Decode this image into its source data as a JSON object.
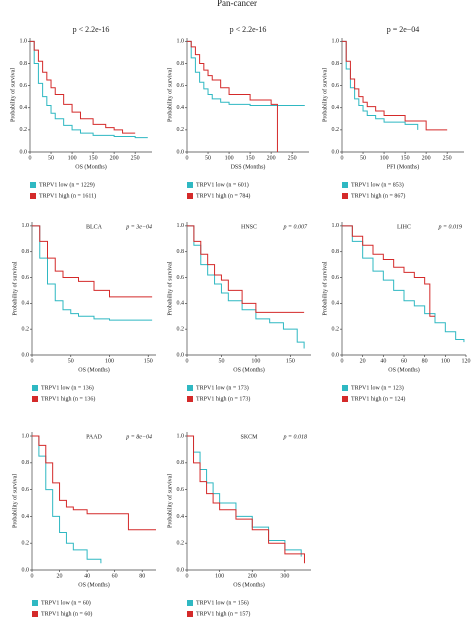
{
  "title": "Pan-cancer",
  "chart_data": [
    {
      "type": "line",
      "title": "p < 2.2e-16",
      "xlabel": "OS (Months)",
      "ylabel": "Probability of survival",
      "xlim": [
        0,
        290
      ],
      "xticks": [
        0,
        50,
        100,
        150,
        200,
        250
      ],
      "ylim": [
        0,
        1.03
      ],
      "yticks": [
        {
          "value": 0,
          "label": "0.0"
        },
        0.2,
        0.4,
        0.6,
        0.8,
        {
          "value": 1,
          "label": "1.0"
        }
      ],
      "series": [
        {
          "name": "TRPV1 low (n = 1229)",
          "color": "#2fb8c2",
          "x": [
            0,
            10,
            20,
            30,
            40,
            50,
            60,
            80,
            100,
            120,
            150,
            200,
            250,
            280
          ],
          "values": [
            1,
            0.8,
            0.62,
            0.5,
            0.42,
            0.35,
            0.3,
            0.24,
            0.2,
            0.17,
            0.15,
            0.14,
            0.13,
            0.13
          ]
        },
        {
          "name": "TRPV1 high (n = 1611)",
          "color": "#d42a2a",
          "x": [
            0,
            10,
            20,
            30,
            40,
            50,
            60,
            80,
            100,
            120,
            150,
            180,
            200,
            220,
            250
          ],
          "values": [
            1,
            0.92,
            0.82,
            0.72,
            0.65,
            0.58,
            0.52,
            0.43,
            0.36,
            0.3,
            0.25,
            0.22,
            0.2,
            0.17,
            0.17
          ]
        }
      ]
    },
    {
      "type": "line",
      "title": "p < 2.2e-16",
      "xlabel": "DSS (Months)",
      "ylabel": "Probability of survival",
      "xlim": [
        0,
        290
      ],
      "xticks": [
        0,
        50,
        100,
        150,
        200,
        250
      ],
      "ylim": [
        0,
        1.03
      ],
      "yticks": [
        {
          "value": 0,
          "label": "0.0"
        },
        0.2,
        0.4,
        0.6,
        0.8,
        {
          "value": 1,
          "label": "1.0"
        }
      ],
      "series": [
        {
          "name": "TRPV1 low (n = 601)",
          "color": "#2fb8c2",
          "x": [
            0,
            10,
            20,
            30,
            40,
            50,
            60,
            80,
            100,
            150,
            200,
            280
          ],
          "values": [
            1,
            0.85,
            0.72,
            0.63,
            0.57,
            0.52,
            0.48,
            0.45,
            0.43,
            0.42,
            0.42,
            0.42
          ]
        },
        {
          "name": "TRPV1 high (n = 784)",
          "color": "#d42a2a",
          "x": [
            0,
            10,
            20,
            30,
            40,
            50,
            60,
            80,
            100,
            150,
            200,
            215
          ],
          "values": [
            1,
            0.95,
            0.88,
            0.8,
            0.74,
            0.69,
            0.65,
            0.58,
            0.52,
            0.47,
            0.43,
            0
          ]
        }
      ]
    },
    {
      "type": "line",
      "title": "p = 2e−04",
      "xlabel": "PFI (Months)",
      "ylabel": "Probability of survival",
      "xlim": [
        0,
        290
      ],
      "xticks": [
        0,
        50,
        100,
        150,
        200,
        250
      ],
      "ylim": [
        0,
        1.03
      ],
      "yticks": [
        {
          "value": 0,
          "label": "0.0"
        },
        0.2,
        0.4,
        0.6,
        0.8,
        {
          "value": 1,
          "label": "1.0"
        }
      ],
      "series": [
        {
          "name": "TRPV1 low (n = 853)",
          "color": "#2fb8c2",
          "x": [
            0,
            10,
            20,
            30,
            40,
            50,
            60,
            80,
            100,
            150,
            180
          ],
          "values": [
            1,
            0.75,
            0.58,
            0.48,
            0.42,
            0.37,
            0.33,
            0.3,
            0.27,
            0.25,
            0.2
          ]
        },
        {
          "name": "TRPV1 high (n = 867)",
          "color": "#d42a2a",
          "x": [
            0,
            10,
            20,
            30,
            40,
            50,
            60,
            80,
            100,
            150,
            200,
            250
          ],
          "values": [
            1,
            0.82,
            0.66,
            0.57,
            0.5,
            0.45,
            0.41,
            0.37,
            0.33,
            0.28,
            0.2,
            0.2
          ]
        }
      ]
    },
    {
      "type": "line",
      "label": "BLCA",
      "title": "p = 3e−04",
      "xlabel": "OS (Months)",
      "ylabel": "Probability of survival",
      "xlim": [
        0,
        160
      ],
      "xticks": [
        0,
        50,
        100,
        150
      ],
      "ylim": [
        0,
        1.03
      ],
      "yticks": [
        {
          "value": 0,
          "label": "0.0"
        },
        0.2,
        0.4,
        0.6,
        0.8,
        {
          "value": 1,
          "label": "1.0"
        }
      ],
      "series": [
        {
          "name": "TRPV1 low (n = 136)",
          "color": "#2fb8c2",
          "x": [
            0,
            10,
            20,
            30,
            40,
            50,
            60,
            80,
            100,
            155
          ],
          "values": [
            1,
            0.75,
            0.55,
            0.42,
            0.35,
            0.32,
            0.3,
            0.28,
            0.27,
            0.27
          ]
        },
        {
          "name": "TRPV1 high (n = 136)",
          "color": "#d42a2a",
          "x": [
            0,
            10,
            20,
            30,
            40,
            60,
            80,
            100,
            155
          ],
          "values": [
            1,
            0.88,
            0.75,
            0.65,
            0.6,
            0.57,
            0.5,
            0.45,
            0.45
          ]
        }
      ]
    },
    {
      "type": "line",
      "label": "HNSC",
      "title": "p = 0.007",
      "xlabel": "OS (Months)",
      "ylabel": "Probability of survival",
      "xlim": [
        0,
        180
      ],
      "xticks": [
        0,
        50,
        100,
        150
      ],
      "ylim": [
        0,
        1.03
      ],
      "yticks": [
        {
          "value": 0,
          "label": "0.0"
        },
        0.2,
        0.4,
        0.6,
        0.8,
        {
          "value": 1,
          "label": "1.0"
        }
      ],
      "series": [
        {
          "name": "TRPV1 low (n = 173)",
          "color": "#2fb8c2",
          "x": [
            0,
            10,
            20,
            30,
            40,
            50,
            60,
            80,
            100,
            120,
            140,
            160,
            170
          ],
          "values": [
            1,
            0.85,
            0.7,
            0.62,
            0.55,
            0.48,
            0.42,
            0.35,
            0.28,
            0.25,
            0.2,
            0.1,
            0.05
          ]
        },
        {
          "name": "TRPV1 high (n = 173)",
          "color": "#d42a2a",
          "x": [
            0,
            10,
            20,
            30,
            40,
            50,
            60,
            80,
            100,
            170
          ],
          "values": [
            1,
            0.88,
            0.78,
            0.7,
            0.62,
            0.58,
            0.5,
            0.4,
            0.33,
            0.33
          ]
        }
      ]
    },
    {
      "type": "line",
      "label": "LIHC",
      "title": "p = 0.019",
      "xlabel": "OS (Months)",
      "ylabel": "Probability of survival",
      "xlim": [
        0,
        120
      ],
      "xticks": [
        0,
        20,
        40,
        60,
        80,
        100,
        120
      ],
      "ylim": [
        0,
        1.03
      ],
      "yticks": [
        {
          "value": 0,
          "label": "0.0"
        },
        0.2,
        0.4,
        0.6,
        0.8,
        {
          "value": 1,
          "label": "1.0"
        }
      ],
      "series": [
        {
          "name": "TRPV1 low (n = 123)",
          "color": "#2fb8c2",
          "x": [
            0,
            10,
            20,
            30,
            40,
            50,
            60,
            70,
            80,
            90,
            100,
            110,
            118
          ],
          "values": [
            1,
            0.88,
            0.75,
            0.65,
            0.58,
            0.5,
            0.42,
            0.38,
            0.32,
            0.25,
            0.18,
            0.12,
            0.1
          ]
        },
        {
          "name": "TRPV1 high (n = 124)",
          "color": "#d42a2a",
          "x": [
            0,
            10,
            20,
            30,
            40,
            50,
            60,
            70,
            80,
            85,
            90
          ],
          "values": [
            1,
            0.92,
            0.85,
            0.78,
            0.74,
            0.68,
            0.64,
            0.6,
            0.55,
            0.3,
            0.3
          ]
        }
      ]
    },
    {
      "type": "line",
      "label": "PAAD",
      "title": "p = 8e−04",
      "xlabel": "OS (Months)",
      "ylabel": "Probability of survival",
      "xlim": [
        0,
        90
      ],
      "xticks": [
        0,
        20,
        40,
        60,
        80
      ],
      "ylim": [
        0,
        1.03
      ],
      "yticks": [
        {
          "value": 0,
          "label": "0.0"
        },
        0.2,
        0.4,
        0.6,
        0.8,
        {
          "value": 1,
          "label": "1.0"
        }
      ],
      "series": [
        {
          "name": "TRPV1 low (n = 60)",
          "color": "#2fb8c2",
          "x": [
            0,
            5,
            10,
            15,
            20,
            25,
            30,
            40,
            50
          ],
          "values": [
            1,
            0.85,
            0.6,
            0.4,
            0.28,
            0.2,
            0.15,
            0.08,
            0.05
          ]
        },
        {
          "name": "TRPV1 high (n = 60)",
          "color": "#d42a2a",
          "x": [
            0,
            5,
            10,
            15,
            20,
            25,
            30,
            40,
            60,
            70,
            90
          ],
          "values": [
            1,
            0.93,
            0.8,
            0.65,
            0.52,
            0.47,
            0.45,
            0.42,
            0.42,
            0.3,
            0.3
          ]
        }
      ]
    },
    {
      "type": "line",
      "label": "SKCM",
      "title": "p = 0.018",
      "xlabel": "OS (Months)",
      "ylabel": "Probability of survival",
      "xlim": [
        0,
        380
      ],
      "xticks": [
        0,
        100,
        200,
        300
      ],
      "ylim": [
        0,
        1.03
      ],
      "yticks": [
        {
          "value": 0,
          "label": "0.0"
        },
        0.2,
        0.4,
        0.6,
        0.8,
        {
          "value": 1,
          "label": "1.0"
        }
      ],
      "series": [
        {
          "name": "TRPV1 low (n = 156)",
          "color": "#2fb8c2",
          "x": [
            0,
            20,
            40,
            60,
            80,
            100,
            150,
            200,
            250,
            300,
            350
          ],
          "values": [
            1,
            0.88,
            0.75,
            0.65,
            0.57,
            0.5,
            0.4,
            0.32,
            0.22,
            0.15,
            0.1
          ]
        },
        {
          "name": "TRPV1 high (n = 157)",
          "color": "#d42a2a",
          "x": [
            0,
            20,
            40,
            60,
            80,
            100,
            150,
            200,
            250,
            300,
            360
          ],
          "values": [
            1,
            0.8,
            0.66,
            0.57,
            0.5,
            0.45,
            0.38,
            0.3,
            0.2,
            0.12,
            0.05
          ]
        }
      ]
    }
  ]
}
